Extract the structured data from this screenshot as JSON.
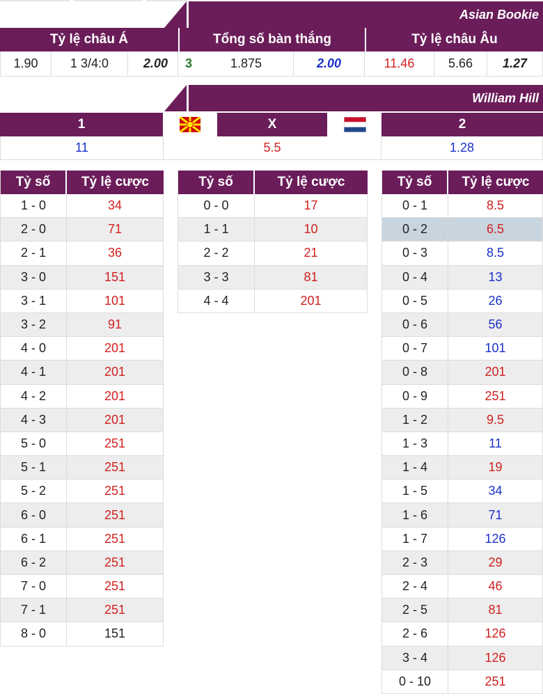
{
  "colors": {
    "accent": "#6b1d5a",
    "odds_red": "#d02020",
    "odds_blue": "#1a2fc8",
    "highlight": "#c8d4de"
  },
  "asian_bookie": {
    "title": "Asian Bookie",
    "headers": {
      "asian": "Tỷ lệ châu Á",
      "total": "Tổng số bàn thắng",
      "euro": "Tỷ lệ châu Âu"
    },
    "asian": {
      "home": "1.90",
      "line": "1 3/4:0",
      "away": "2.00"
    },
    "total": {
      "goals": "3",
      "over": "1.875",
      "under": "2.00"
    },
    "euro": {
      "home": "11.46",
      "draw": "5.66",
      "away": "1.27"
    }
  },
  "william_hill": {
    "title": "William Hill",
    "labels": {
      "home": "1",
      "draw": "X",
      "away": "2"
    },
    "flags": {
      "home": "north-macedonia-flag-icon",
      "away": "netherlands-flag-icon"
    },
    "odds": {
      "home": "11",
      "draw": "5.5",
      "away": "1.28"
    }
  },
  "score_header": {
    "score": "Tỷ số",
    "odds": "Tỷ lệ cược"
  },
  "home_wins": [
    {
      "score": "1 - 0",
      "odds": "34",
      "color": "red"
    },
    {
      "score": "2 - 0",
      "odds": "71",
      "color": "red"
    },
    {
      "score": "2 - 1",
      "odds": "36",
      "color": "red"
    },
    {
      "score": "3 - 0",
      "odds": "151",
      "color": "red"
    },
    {
      "score": "3 - 1",
      "odds": "101",
      "color": "red"
    },
    {
      "score": "3 - 2",
      "odds": "91",
      "color": "red"
    },
    {
      "score": "4 - 0",
      "odds": "201",
      "color": "red"
    },
    {
      "score": "4 - 1",
      "odds": "201",
      "color": "red"
    },
    {
      "score": "4 - 2",
      "odds": "201",
      "color": "red"
    },
    {
      "score": "4 - 3",
      "odds": "201",
      "color": "red"
    },
    {
      "score": "5 - 0",
      "odds": "251",
      "color": "red"
    },
    {
      "score": "5 - 1",
      "odds": "251",
      "color": "red"
    },
    {
      "score": "5 - 2",
      "odds": "251",
      "color": "red"
    },
    {
      "score": "6 - 0",
      "odds": "251",
      "color": "red"
    },
    {
      "score": "6 - 1",
      "odds": "251",
      "color": "red"
    },
    {
      "score": "6 - 2",
      "odds": "251",
      "color": "red"
    },
    {
      "score": "7 - 0",
      "odds": "251",
      "color": "red"
    },
    {
      "score": "7 - 1",
      "odds": "251",
      "color": "red"
    },
    {
      "score": "8 - 0",
      "odds": "151",
      "color": "dark"
    }
  ],
  "draws": [
    {
      "score": "0 - 0",
      "odds": "17",
      "color": "red"
    },
    {
      "score": "1 - 1",
      "odds": "10",
      "color": "red"
    },
    {
      "score": "2 - 2",
      "odds": "21",
      "color": "red"
    },
    {
      "score": "3 - 3",
      "odds": "81",
      "color": "red"
    },
    {
      "score": "4 - 4",
      "odds": "201",
      "color": "red"
    }
  ],
  "away_wins": [
    {
      "score": "0 - 1",
      "odds": "8.5",
      "color": "red"
    },
    {
      "score": "0 - 2",
      "odds": "6.5",
      "color": "red",
      "highlight": true
    },
    {
      "score": "0 - 3",
      "odds": "8.5",
      "color": "blue"
    },
    {
      "score": "0 - 4",
      "odds": "13",
      "color": "blue"
    },
    {
      "score": "0 - 5",
      "odds": "26",
      "color": "blue"
    },
    {
      "score": "0 - 6",
      "odds": "56",
      "color": "blue"
    },
    {
      "score": "0 - 7",
      "odds": "101",
      "color": "blue"
    },
    {
      "score": "0 - 8",
      "odds": "201",
      "color": "red"
    },
    {
      "score": "0 - 9",
      "odds": "251",
      "color": "red"
    },
    {
      "score": "1 - 2",
      "odds": "9.5",
      "color": "red"
    },
    {
      "score": "1 - 3",
      "odds": "11",
      "color": "blue"
    },
    {
      "score": "1 - 4",
      "odds": "19",
      "color": "red"
    },
    {
      "score": "1 - 5",
      "odds": "34",
      "color": "blue"
    },
    {
      "score": "1 - 6",
      "odds": "71",
      "color": "blue"
    },
    {
      "score": "1 - 7",
      "odds": "126",
      "color": "blue"
    },
    {
      "score": "2 - 3",
      "odds": "29",
      "color": "red"
    },
    {
      "score": "2 - 4",
      "odds": "46",
      "color": "red"
    },
    {
      "score": "2 - 5",
      "odds": "81",
      "color": "red"
    },
    {
      "score": "2 - 6",
      "odds": "126",
      "color": "red"
    },
    {
      "score": "3 - 4",
      "odds": "126",
      "color": "red"
    },
    {
      "score": "0 - 10",
      "odds": "251",
      "color": "red"
    }
  ]
}
